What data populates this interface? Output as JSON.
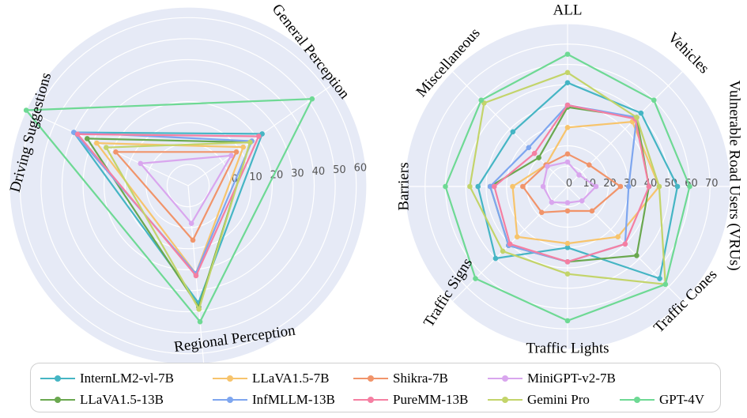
{
  "chart_data": [
    {
      "type": "radar",
      "axes": [
        "General Perception",
        "Regional Perception",
        "Driving Suggestions"
      ],
      "ticks": [
        "0",
        "10",
        "20",
        "30",
        "40",
        "50",
        "60"
      ],
      "rlim": [
        -20,
        65
      ],
      "series": [
        {
          "name": "InternLM2-vl-7B",
          "values": [
            23,
            36,
            40
          ]
        },
        {
          "name": "LLaVA1.5-7B",
          "values": [
            12,
            22,
            28
          ]
        },
        {
          "name": "Shikra-7B",
          "values": [
            8,
            6,
            18
          ]
        },
        {
          "name": "MiniGPT-v2-7B",
          "values": [
            5,
            -2,
            5
          ]
        },
        {
          "name": "LLaVA1.5-13B",
          "values": [
            16,
            38,
            33
          ]
        },
        {
          "name": "InfMLLM-13B",
          "values": [
            17,
            22,
            40
          ]
        },
        {
          "name": "PureMM-13B",
          "values": [
            21,
            23,
            38
          ]
        },
        {
          "name": "Gemini Pro",
          "values": [
            16,
            39,
            23
          ]
        },
        {
          "name": "GPT-4V",
          "values": [
            52,
            45,
            65
          ]
        }
      ]
    },
    {
      "type": "radar",
      "axes": [
        "ALL",
        "Vehicles",
        "Vulnerable Road Users (VRUs)",
        "Traffic Cones",
        "Traffic Lights",
        "Traffic Signs",
        "Barriers",
        "Miscellaneous"
      ],
      "ticks": [
        "0",
        "10",
        "20",
        "30",
        "40",
        "50",
        "60",
        "70"
      ],
      "rlim": [
        0,
        80
      ],
      "series": [
        {
          "name": "InternLM2-vl-7B",
          "values": [
            51,
            51,
            54,
            64,
            30,
            50,
            44,
            38
          ]
        },
        {
          "name": "LLaVA1.5-7B",
          "values": [
            29,
            45,
            45,
            35,
            28,
            35,
            27,
            15
          ]
        },
        {
          "name": "Shikra-7B",
          "values": [
            16,
            15,
            26,
            17,
            12,
            18,
            22,
            15
          ]
        },
        {
          "name": "MiniGPT-v2-7B",
          "values": [
            12,
            8,
            14,
            10,
            8,
            11,
            12,
            14
          ]
        },
        {
          "name": "LLaVA1.5-13B",
          "values": [
            39,
            48,
            40,
            48,
            37,
            41,
            38,
            20
          ]
        },
        {
          "name": "InfMLLM-13B",
          "values": [
            40,
            48,
            30,
            40,
            37,
            41,
            38,
            27
          ]
        },
        {
          "name": "PureMM-13B",
          "values": [
            40,
            47,
            40,
            40,
            37,
            40,
            36,
            23
          ]
        },
        {
          "name": "Gemini Pro",
          "values": [
            56,
            48,
            45,
            68,
            43,
            45,
            48,
            58
          ]
        },
        {
          "name": "GPT-4V",
          "values": [
            65,
            60,
            60,
            68,
            66,
            64,
            60,
            60
          ]
        }
      ]
    }
  ],
  "legend": {
    "items": [
      {
        "label": "InternLM2-vl-7B",
        "color": "#45b5c4"
      },
      {
        "label": "LLaVA1.5-7B",
        "color": "#f7c46c"
      },
      {
        "label": "Shikra-7B",
        "color": "#f1946a"
      },
      {
        "label": "MiniGPT-v2-7B",
        "color": "#d9a6ee"
      },
      {
        "label": "LLaVA1.5-13B",
        "color": "#6aa84f"
      },
      {
        "label": "InfMLLM-13B",
        "color": "#7ea6ef"
      },
      {
        "label": "PureMM-13B",
        "color": "#f57fa2"
      },
      {
        "label": "Gemini Pro",
        "color": "#c3d46a"
      },
      {
        "label": "GPT-4V",
        "color": "#6ed994"
      }
    ]
  },
  "colors": {
    "grid_background": "#e6eaf6",
    "grid_line": "#ffffff"
  }
}
